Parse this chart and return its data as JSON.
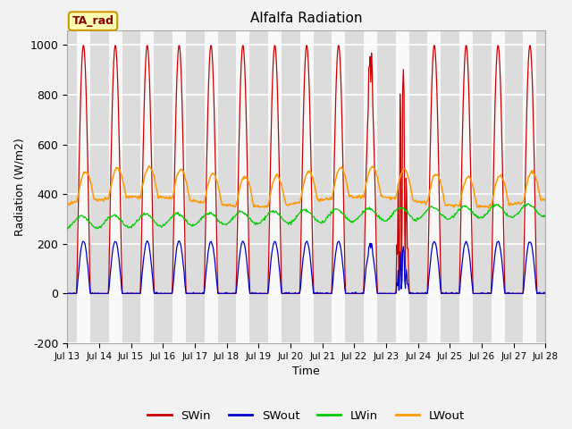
{
  "title": "Alfalfa Radiation",
  "xlabel": "Time",
  "ylabel": "Radiation (W/m2)",
  "ylim": [
    -200,
    1060
  ],
  "yticks": [
    -200,
    0,
    200,
    400,
    600,
    800,
    1000
  ],
  "annotation_label": "TA_rad",
  "series": [
    "SWin",
    "SWout",
    "LWin",
    "LWout"
  ],
  "colors": {
    "SWin": "#cc0000",
    "SWout": "#0000cc",
    "LWin": "#00cc00",
    "LWout": "#ff9900"
  },
  "background_color": "#f2f2f2",
  "plot_bg_color": "#ffffff",
  "day_band_color": "#dcdcdc",
  "night_band_color": "#f8f8f8",
  "start_day": 13,
  "end_day": 28,
  "n_days": 15
}
